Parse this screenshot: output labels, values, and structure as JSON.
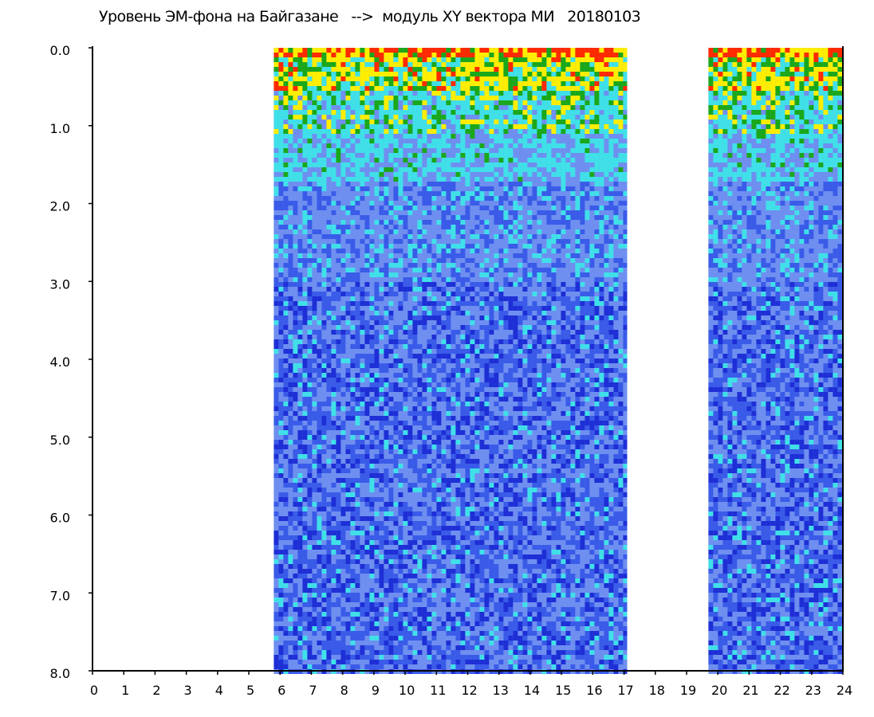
{
  "chart_data": {
    "type": "heatmap",
    "title": "Уровень ЭМ-фона на Байгазане   -->  модуль XY вектора МИ   20180103",
    "xlabel": "",
    "ylabel": "",
    "xlim": [
      0,
      24
    ],
    "ylim": [
      8.0,
      0.0
    ],
    "x_ticks": [
      "0",
      "1",
      "2",
      "3",
      "4",
      "5",
      "6",
      "7",
      "8",
      "9",
      "10",
      "11",
      "12",
      "13",
      "14",
      "15",
      "16",
      "17",
      "18",
      "19",
      "20",
      "21",
      "22",
      "23",
      "24"
    ],
    "y_ticks": [
      "0.0",
      "1.0",
      "2.0",
      "3.0",
      "4.0",
      "5.0",
      "6.0",
      "7.0",
      "8.0"
    ],
    "data_segments": [
      {
        "x_start": 5.8,
        "x_end": 17.1
      },
      {
        "x_start": 19.7,
        "x_end": 24.0
      }
    ],
    "colormap": [
      "#1e2fd6",
      "#3a5be8",
      "#6f8ff0",
      "#40e0e8",
      "#1aa81a",
      "#ffee00",
      "#ff2a00"
    ],
    "grid": false,
    "legend": "none"
  }
}
